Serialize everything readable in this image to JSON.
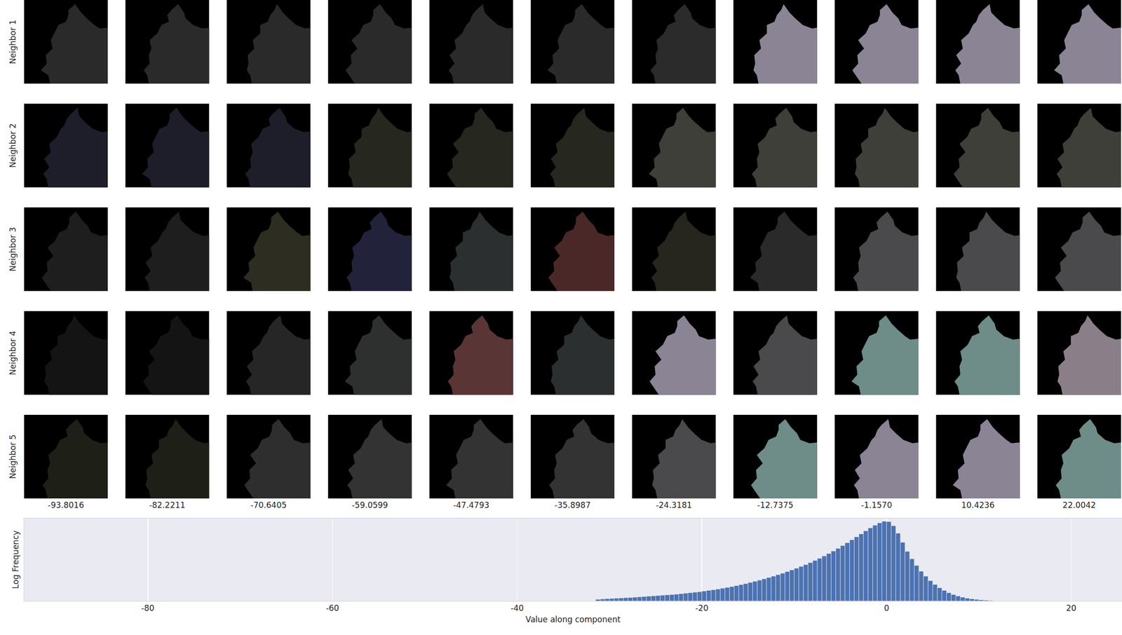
{
  "thumbnail_grid": {
    "columns": [
      -93.8016,
      -82.2211,
      -70.6405,
      -59.0599,
      -47.4793,
      -35.8987,
      -24.3181,
      -12.7375,
      {
        "value": -1.157,
        "label": "-1.1570"
      },
      10.4236,
      22.0042
    ],
    "rows": [
      {
        "label": "Neighbor 1",
        "colors": [
          "#2a2a2a",
          "#2a2a2a",
          "#2a2a2a",
          "#2a2a2a",
          "#2a2a2a",
          "#2a2a2a",
          "#2b2b2b",
          "#8a8494",
          "#8a8494",
          "#8a8494",
          "#8a8494"
        ]
      },
      {
        "label": "Neighbor 2",
        "colors": [
          "#1e1e2a",
          "#1e1e2a",
          "#1e1e2a",
          "#26271f",
          "#26271f",
          "#26271f",
          "#3e3f38",
          "#3e3f38",
          "#3e3f38",
          "#3e3f38",
          "#3e3f38"
        ]
      },
      {
        "label": "Neighbor 3",
        "colors": [
          "#1e1e1e",
          "#1e1e1e",
          "#2e2d22",
          "#22223a",
          "#2c2f30",
          "#4a2828",
          "#27261e",
          "#2a2a2b",
          "#4a4a4c",
          "#4a4a4c",
          "#4a4a4c"
        ]
      },
      {
        "label": "Neighbor 4",
        "colors": [
          "#141414",
          "#141414",
          "#262626",
          "#2e3030",
          "#5a3535",
          "#2c2f30",
          "#8a8494",
          "#4a4a4c",
          "#6e8c88",
          "#6e8c88",
          "#8a7e88"
        ]
      },
      {
        "label": "Neighbor 5",
        "colors": [
          "#1e2018",
          "#1e2018",
          "#2e2e2e",
          "#333333",
          "#333333",
          "#333333",
          "#4a4a4c",
          "#6e8c88",
          "#8a8494",
          "#8a8494",
          "#6e8c88"
        ]
      }
    ]
  },
  "chart_data": {
    "type": "histogram",
    "xlabel": "Value along component",
    "ylabel": "Log Frequency",
    "color": "#4c72b0",
    "bins": [
      -31.5,
      -31,
      -30.5,
      -30,
      -29.5,
      -29,
      -28.5,
      -28,
      -27.5,
      -27,
      -26.5,
      -26,
      -25.5,
      -25,
      -24.5,
      -24,
      -23.5,
      -23,
      -22.5,
      -22,
      -21.5,
      -21,
      -20.5,
      -20,
      -19.5,
      -19,
      -18.5,
      -18,
      -17.5,
      -17,
      -16.5,
      -16,
      -15.5,
      -15,
      -14.5,
      -14,
      -13.5,
      -13,
      -12.5,
      -12,
      -11.5,
      -11,
      -10.5,
      -10,
      -9.5,
      -9,
      -8.5,
      -8,
      -7.5,
      -7,
      -6.5,
      -6,
      -5.5,
      -5,
      -4.5,
      -4,
      -3.5,
      -3,
      -2.5,
      -2,
      -1.5,
      -1,
      -0.5,
      0,
      0.5,
      1,
      1.5,
      2,
      2.5,
      3,
      3.5,
      4,
      4.5,
      5,
      5.5,
      6,
      6.5,
      7,
      7.5,
      8,
      8.5,
      9,
      9.5,
      10,
      10.5,
      11,
      11.5
    ],
    "values": [
      0.1,
      0.12,
      0.14,
      0.15,
      0.17,
      0.18,
      0.2,
      0.21,
      0.23,
      0.25,
      0.27,
      0.29,
      0.31,
      0.33,
      0.35,
      0.37,
      0.39,
      0.41,
      0.44,
      0.47,
      0.5,
      0.53,
      0.56,
      0.6,
      0.64,
      0.68,
      0.72,
      0.77,
      0.82,
      0.87,
      0.93,
      0.99,
      1.05,
      1.12,
      1.19,
      1.26,
      1.34,
      1.42,
      1.5,
      1.59,
      1.68,
      1.78,
      1.88,
      1.98,
      2.09,
      2.2,
      2.32,
      2.45,
      2.58,
      2.72,
      2.87,
      3.02,
      3.18,
      3.35,
      3.52,
      3.7,
      3.88,
      4.06,
      4.24,
      4.42,
      4.58,
      4.72,
      4.82,
      4.8,
      4.55,
      4.1,
      3.55,
      3.0,
      2.55,
      2.15,
      1.8,
      1.5,
      1.23,
      1.0,
      0.8,
      0.64,
      0.5,
      0.39,
      0.3,
      0.23,
      0.17,
      0.13,
      0.1,
      0.07,
      0.05,
      0.03
    ],
    "xlim": [
      -93.4,
      25.5
    ],
    "xticks": [
      -80,
      -60,
      -40,
      -20,
      0,
      20
    ],
    "ylim": [
      0,
      5.0
    ],
    "grid": true,
    "tick_labels": "x"
  }
}
